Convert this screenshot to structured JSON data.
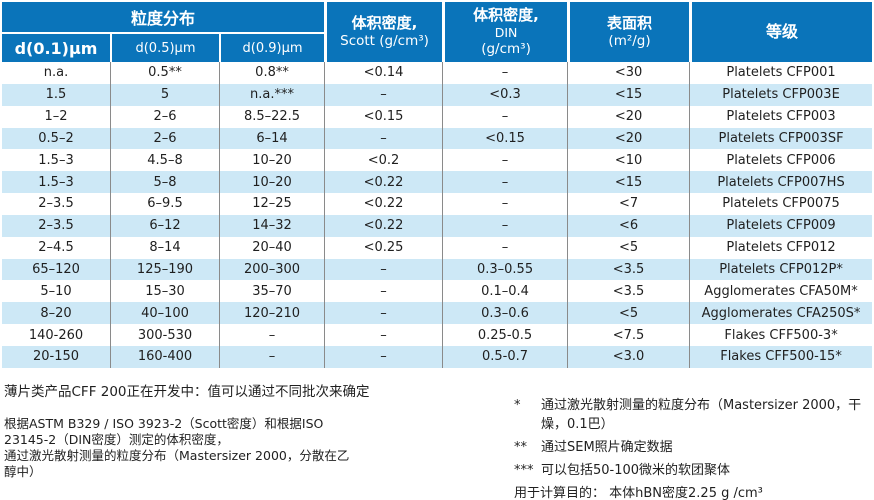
{
  "colors": {
    "header_bg": "#0a74ba",
    "row_alt_bg": "#cde8f6",
    "grid_line": "#8a8a8a",
    "header_text": "#ffffff",
    "body_text": "#1f1f1f"
  },
  "table": {
    "header": {
      "group": "粒度分布",
      "sub": [
        "d(0.1)μm",
        "d(0.5)μm",
        "d(0.9)μm"
      ],
      "scott": {
        "line1": "体积密度,",
        "line2": "Scott (g/cm³)"
      },
      "din": {
        "line1": "体积密度,",
        "line2": "DIN",
        "line3": "(g/cm³)"
      },
      "surface": {
        "line1": "表面积",
        "line2": "(m²/g)"
      },
      "grade": "等级"
    },
    "rows": [
      {
        "d01": "n.a.",
        "d05": "0.5**",
        "d09": "0.8**",
        "scott": "<0.14",
        "din": "–",
        "surface": "<30",
        "grade": "Platelets CFP001"
      },
      {
        "d01": "1.5",
        "d05": "5",
        "d09": "n.a.***",
        "scott": "–",
        "din": "<0.3",
        "surface": "<15",
        "grade": "Platelets CFP003E"
      },
      {
        "d01": "1–2",
        "d05": "2–6",
        "d09": "8.5–22.5",
        "scott": "<0.15",
        "din": "–",
        "surface": "<20",
        "grade": "Platelets CFP003"
      },
      {
        "d01": "0.5–2",
        "d05": "2–6",
        "d09": "6–14",
        "scott": "–",
        "din": "<0.15",
        "surface": "<20",
        "grade": "Platelets CFP003SF"
      },
      {
        "d01": "1.5–3",
        "d05": "4.5–8",
        "d09": "10–20",
        "scott": "<0.2",
        "din": "–",
        "surface": "<10",
        "grade": "Platelets CFP006"
      },
      {
        "d01": "1.5–3",
        "d05": "5–8",
        "d09": "10–20",
        "scott": "<0.22",
        "din": "–",
        "surface": "<15",
        "grade": "Platelets CFP007HS"
      },
      {
        "d01": "2–3.5",
        "d05": "6–9.5",
        "d09": "12–25",
        "scott": "<0.22",
        "din": "–",
        "surface": "<7",
        "grade": "Platelets CFP0075"
      },
      {
        "d01": "2–3.5",
        "d05": "6–12",
        "d09": "14–32",
        "scott": "<0.22",
        "din": "–",
        "surface": "<6",
        "grade": "Platelets CFP009"
      },
      {
        "d01": "2–4.5",
        "d05": "8–14",
        "d09": "20–40",
        "scott": "<0.25",
        "din": "–",
        "surface": "<5",
        "grade": "Platelets CFP012"
      },
      {
        "d01": "65–120",
        "d05": "125–190",
        "d09": "200–300",
        "scott": "–",
        "din": "0.3–0.55",
        "surface": "<3.5",
        "grade": "Platelets CFP012P*"
      },
      {
        "d01": "5–10",
        "d05": "15–30",
        "d09": "35–70",
        "scott": "–",
        "din": "0.1–0.4",
        "surface": "<3.5",
        "grade": "Agglomerates CFA50M*"
      },
      {
        "d01": "8–20",
        "d05": "40–100",
        "d09": "120–210",
        "scott": "–",
        "din": "0.3–0.6",
        "surface": "<5",
        "grade": "Agglomerates CFA250S*"
      },
      {
        "d01": "140-260",
        "d05": "300-530",
        "d09": "–",
        "scott": "–",
        "din": "0.25-0.5",
        "surface": "<7.5",
        "grade": "Flakes CFF500-3*"
      },
      {
        "d01": "20-150",
        "d05": "160-400",
        "d09": "–",
        "scott": "–",
        "din": "0.5-0.7",
        "surface": "<3.0",
        "grade": "Flakes CFF500-15*"
      }
    ]
  },
  "notes": {
    "development": "薄片类产品CFF 200正在开发中：值可以通过不同批次来确定",
    "method_lines": [
      "根据ASTM B329 / ISO 3923-2（Scott密度）和根据ISO",
      "23145-2（DIN密度）测定的体积密度，",
      "通过激光散射测量的粒度分布（Mastersizer 2000，分散在乙",
      "醇中）"
    ],
    "footnotes": [
      {
        "marker": "*",
        "text": "通过激光散射测量的粒度分布（Mastersizer 2000，干燥，0.1巴）"
      },
      {
        "marker": "**",
        "text": "通过SEM照片确定数据"
      },
      {
        "marker": "***",
        "text": "可以包括50-100微米的软团聚体"
      },
      {
        "marker": "",
        "text": "用于计算目的： 本体hBN密度2.25 g /cm³"
      }
    ]
  }
}
